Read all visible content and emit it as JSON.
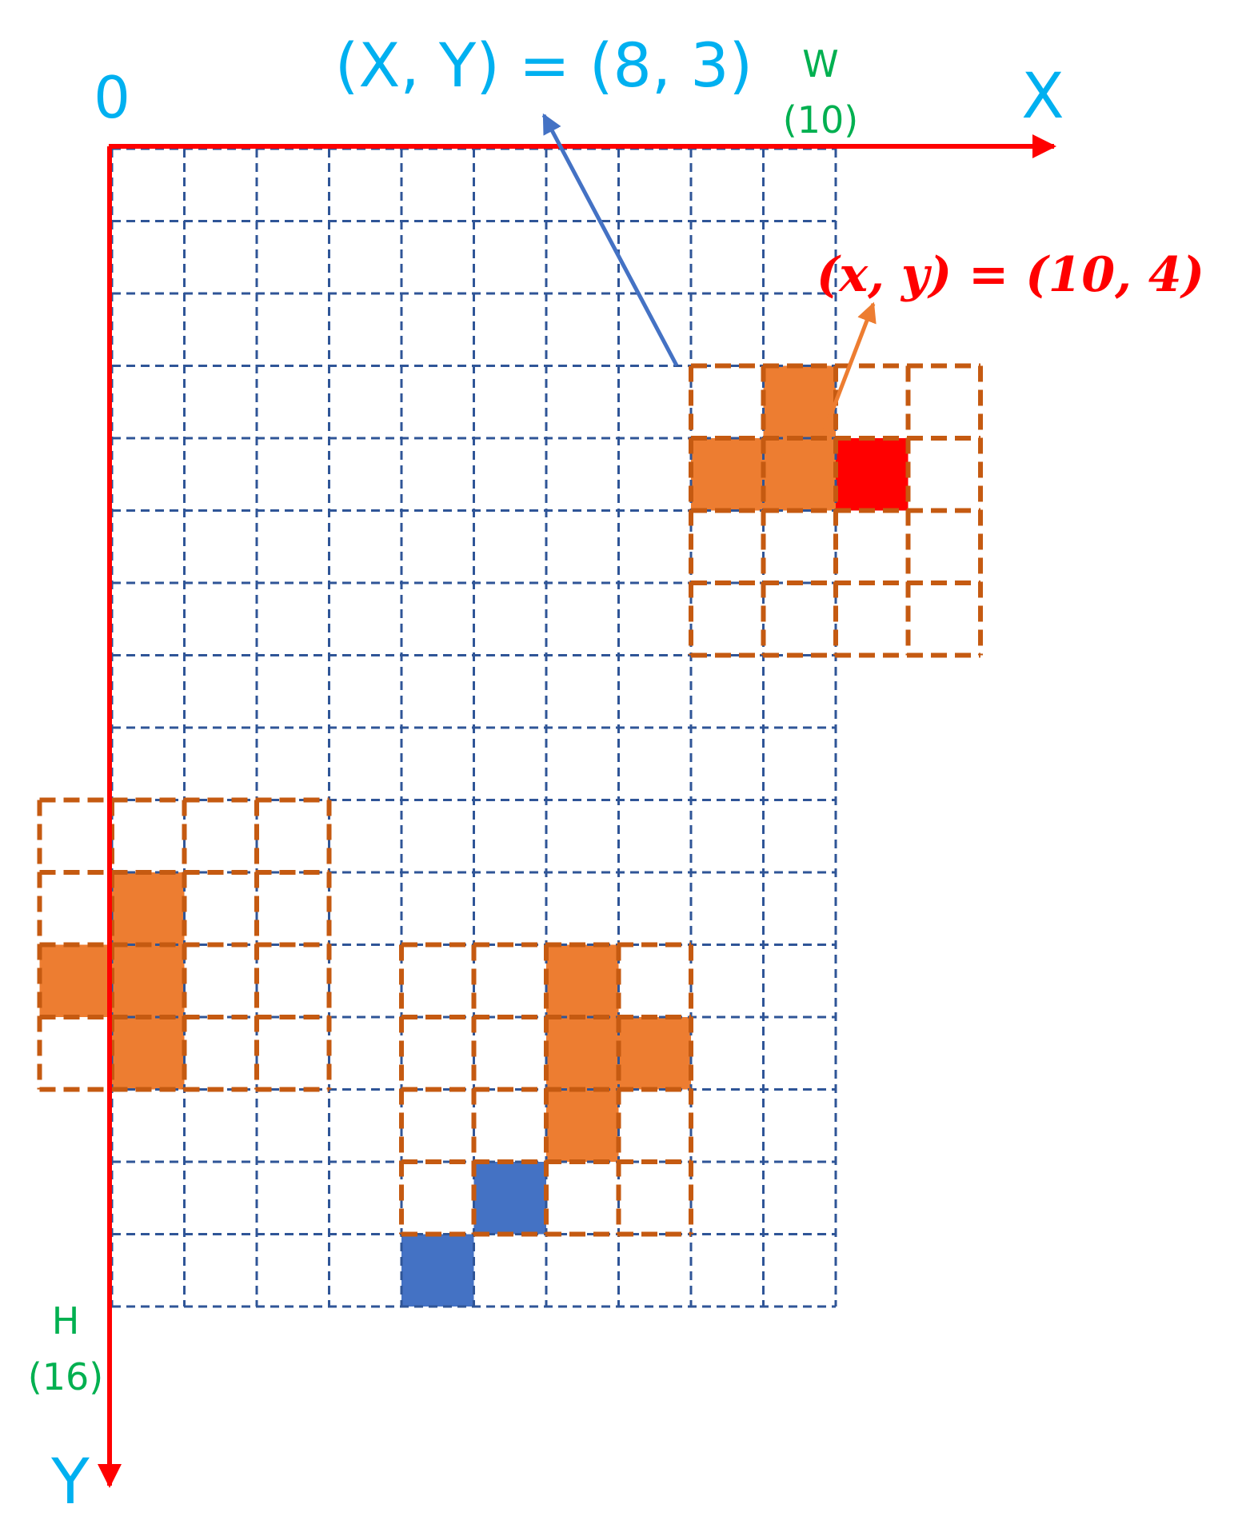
{
  "labels": {
    "origin": "0",
    "x_axis": "X",
    "y_axis": "Y",
    "w_letter": "W",
    "w_value": "(10)",
    "h_letter": "H",
    "h_value": "(16)",
    "global_coord": "(X, Y) = (8, 3)",
    "local_coord": "(x, y) = (10, 4)"
  },
  "grid": {
    "cols": 10,
    "rows": 16
  },
  "window_origins": [
    [
      8,
      3
    ],
    [
      -1,
      9
    ],
    [
      4,
      11
    ]
  ],
  "window_size": [
    4,
    4
  ],
  "filled_cells": {
    "orange": [
      [
        9,
        3
      ],
      [
        8,
        4
      ],
      [
        9,
        4
      ],
      [
        -1,
        11
      ],
      [
        0,
        10
      ],
      [
        0,
        11
      ],
      [
        0,
        12
      ],
      [
        6,
        11
      ],
      [
        6,
        12
      ],
      [
        7,
        12
      ],
      [
        6,
        13
      ]
    ],
    "red": [
      [
        10,
        4
      ]
    ],
    "blue": [
      [
        5,
        14
      ],
      [
        4,
        15
      ]
    ]
  },
  "colors": {
    "grid_line": "#2f5597",
    "axis": "#ff0000",
    "window_border": "#c55a11",
    "orange_fill": "#ed7d31",
    "red_fill": "#ff0000",
    "blue_fill": "#4472c4",
    "cyan_text": "#00b0f0",
    "green_text": "#00b050",
    "red_text": "#ff0000",
    "blue_arrow": "#4472c4",
    "orange_arrow": "#ed7d31"
  }
}
